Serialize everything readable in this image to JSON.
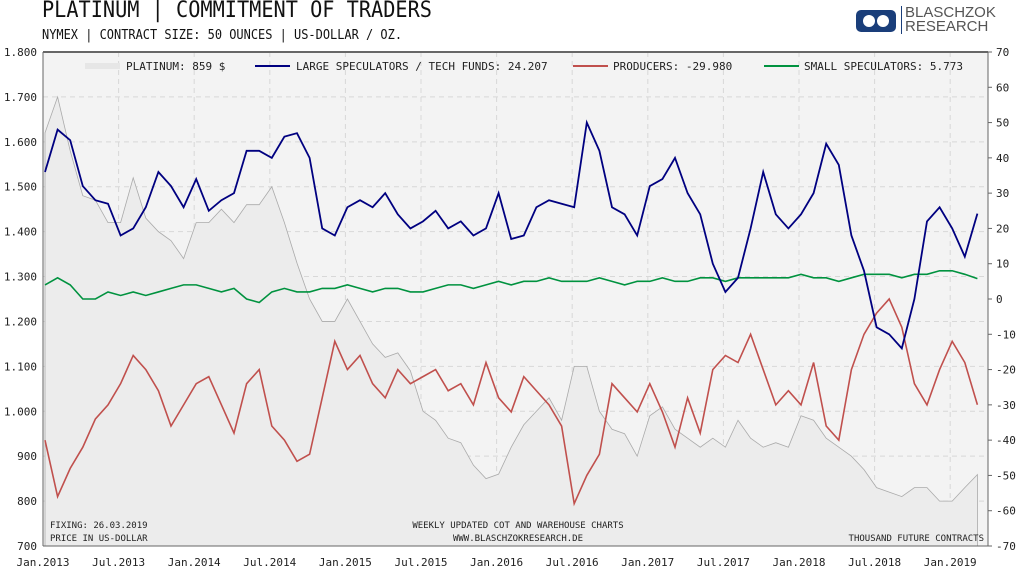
{
  "header": {
    "title": "PLATINUM | COMMITMENT OF TRADERS",
    "subtitle": "NYMEX | CONTRACT SIZE: 50 OUNCES | US-DOLLAR / OZ.",
    "logo_line1": "BLASCHZOK",
    "logo_line2": "RESEARCH"
  },
  "colors": {
    "platinum": "#ececec",
    "large": "#000080",
    "producers": "#c0504d",
    "small": "#00923f"
  },
  "chart_data": {
    "type": "line",
    "title": "PLATINUM | COMMITMENT OF TRADERS",
    "x_ticks": [
      "Jan.2013",
      "Jul.2013",
      "Jan.2014",
      "Jul.2014",
      "Jan.2015",
      "Jul.2015",
      "Jan.2016",
      "Jul.2016",
      "Jan.2017",
      "Jul.2017",
      "Jan.2018",
      "Jul.2018",
      "Jan.2019"
    ],
    "left_axis": {
      "label": "PRICE IN US-DOLLAR",
      "range": [
        700,
        1800
      ],
      "ticks": [
        "700",
        "800",
        "900",
        "1.000",
        "1.100",
        "1.200",
        "1.300",
        "1.400",
        "1.500",
        "1.600",
        "1.700",
        "1.800"
      ]
    },
    "right_axis": {
      "label": "THOUSAND FUTURE CONTRACTS",
      "range": [
        -70,
        70
      ],
      "ticks": [
        "-70",
        "-60",
        "-50",
        "-40",
        "-30",
        "-20",
        "-10",
        "0",
        "10",
        "20",
        "30",
        "40",
        "50",
        "60",
        "70"
      ]
    },
    "x_start": "2013-01",
    "x_step": "month",
    "legend": [
      "PLATINUM: 859 $",
      "LARGE SPECULATORS / TECH FUNDS: 24.207",
      "PRODUCERS: -29.980",
      "SMALL SPECULATORS: 5.773"
    ],
    "series": [
      {
        "name": "Platinum",
        "axis": "left",
        "type": "area",
        "values": [
          1620,
          1700,
          1580,
          1480,
          1470,
          1420,
          1420,
          1520,
          1430,
          1400,
          1380,
          1340,
          1420,
          1420,
          1450,
          1420,
          1460,
          1460,
          1500,
          1420,
          1330,
          1250,
          1200,
          1200,
          1250,
          1200,
          1150,
          1120,
          1130,
          1090,
          1000,
          980,
          940,
          930,
          880,
          850,
          860,
          920,
          970,
          1000,
          1030,
          980,
          1100,
          1100,
          1000,
          960,
          950,
          900,
          990,
          1010,
          960,
          940,
          920,
          940,
          920,
          980,
          940,
          920,
          930,
          920,
          990,
          980,
          940,
          920,
          900,
          870,
          830,
          820,
          810,
          830,
          830,
          800,
          800,
          830,
          859
        ]
      },
      {
        "name": "Large Speculators / Tech Funds",
        "axis": "right",
        "values": [
          36,
          48,
          45,
          32,
          28,
          27,
          18,
          20,
          26,
          36,
          32,
          26,
          34,
          25,
          28,
          30,
          42,
          42,
          40,
          46,
          47,
          40,
          20,
          18,
          26,
          28,
          26,
          30,
          24,
          20,
          22,
          25,
          20,
          22,
          18,
          20,
          30,
          17,
          18,
          26,
          28,
          27,
          26,
          50,
          42,
          26,
          24,
          18,
          32,
          34,
          40,
          30,
          24,
          10,
          2,
          6,
          20,
          36,
          24,
          20,
          24,
          30,
          44,
          38,
          18,
          8,
          -8,
          -10,
          -14,
          0,
          22,
          26,
          20,
          12,
          24.207
        ]
      },
      {
        "name": "Producers",
        "axis": "right",
        "values": [
          -40,
          -56,
          -48,
          -42,
          -34,
          -30,
          -24,
          -16,
          -20,
          -26,
          -36,
          -30,
          -24,
          -22,
          -30,
          -38,
          -24,
          -20,
          -36,
          -40,
          -46,
          -44,
          -28,
          -12,
          -20,
          -16,
          -24,
          -28,
          -20,
          -24,
          -22,
          -20,
          -26,
          -24,
          -30,
          -18,
          -28,
          -32,
          -22,
          -26,
          -30,
          -36,
          -58,
          -50,
          -44,
          -24,
          -28,
          -32,
          -24,
          -32,
          -42,
          -28,
          -38,
          -20,
          -16,
          -18,
          -10,
          -20,
          -30,
          -26,
          -30,
          -18,
          -36,
          -40,
          -20,
          -10,
          -4,
          0,
          -8,
          -24,
          -30,
          -20,
          -12,
          -18,
          -29.98
        ]
      },
      {
        "name": "Small Speculators",
        "axis": "right",
        "values": [
          4,
          6,
          4,
          0,
          0,
          2,
          1,
          2,
          1,
          2,
          3,
          4,
          4,
          3,
          2,
          3,
          0,
          -1,
          2,
          3,
          2,
          2,
          3,
          3,
          4,
          3,
          2,
          3,
          3,
          2,
          2,
          3,
          4,
          4,
          3,
          4,
          5,
          4,
          5,
          5,
          6,
          5,
          5,
          5,
          6,
          5,
          4,
          5,
          5,
          6,
          5,
          5,
          6,
          6,
          5,
          6,
          6,
          6,
          6,
          6,
          7,
          6,
          6,
          5,
          6,
          7,
          7,
          7,
          6,
          7,
          7,
          8,
          8,
          7,
          5.773
        ]
      }
    ]
  },
  "footer": {
    "fixing": "FIXING: 26.03.2019",
    "price_label": "PRICE IN US-DOLLAR",
    "updated": "WEEKLY UPDATED COT AND WAREHOUSE CHARTS",
    "website": "WWW.BLASCHZOKRESEARCH.DE",
    "units": "THOUSAND FUTURE CONTRACTS"
  }
}
